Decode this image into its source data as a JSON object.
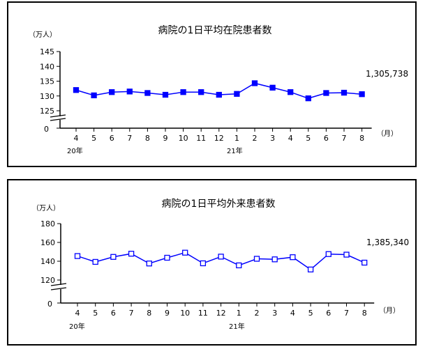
{
  "colors": {
    "line": "#0000ff",
    "axis": "#000000"
  },
  "chart_data": [
    {
      "type": "line",
      "title": "病院の1日平均在院患者数",
      "ylabel": "（万人）",
      "xlabel": "（月）",
      "categories": [
        "4",
        "5",
        "6",
        "7",
        "8",
        "9",
        "10",
        "11",
        "12",
        "1",
        "2",
        "3",
        "4",
        "5",
        "6",
        "7",
        "8"
      ],
      "year_labels": [
        "20年",
        "21年"
      ],
      "y_ticks": [
        145,
        140,
        135,
        130,
        125
      ],
      "zero_label": "0",
      "ylim": [
        125,
        145
      ],
      "marker": "filled-square",
      "latest_value_label": "1,305,738",
      "series": [
        {
          "values": [
            132.0,
            130.2,
            131.3,
            131.5,
            131.0,
            130.4,
            131.3,
            131.3,
            130.4,
            130.7,
            134.3,
            132.8,
            131.3,
            129.2,
            131.0,
            131.1,
            130.6
          ]
        }
      ]
    },
    {
      "type": "line",
      "title": "病院の1日平均外来患者数",
      "ylabel": "（万人）",
      "xlabel": "（月）",
      "categories": [
        "4",
        "5",
        "6",
        "7",
        "8",
        "9",
        "10",
        "11",
        "12",
        "1",
        "2",
        "3",
        "4",
        "5",
        "6",
        "7",
        "8"
      ],
      "year_labels": [
        "20年",
        "21年"
      ],
      "y_ticks": [
        180,
        160,
        140,
        120
      ],
      "zero_label": "0",
      "ylim": [
        120,
        180
      ],
      "marker": "open-square",
      "latest_value_label": "1,385,340",
      "series": [
        {
          "values": [
            145.5,
            139.3,
            144.6,
            148.0,
            137.6,
            143.7,
            149.1,
            137.8,
            144.9,
            135.6,
            142.6,
            142.0,
            144.3,
            131.2,
            147.6,
            147.0,
            138.5
          ]
        }
      ]
    }
  ]
}
